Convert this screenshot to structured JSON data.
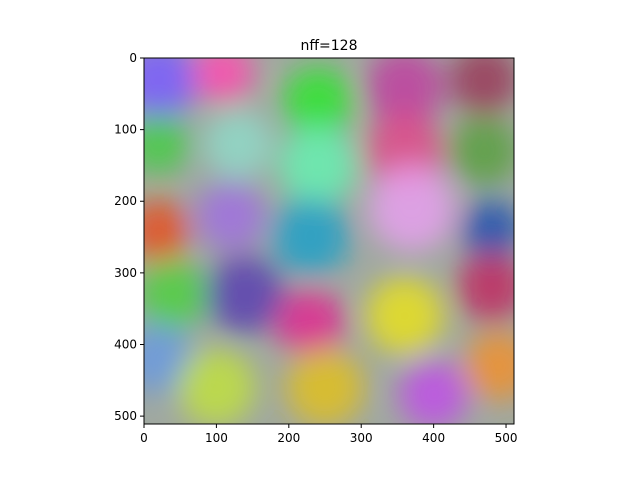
{
  "chart_data": {
    "type": "heatmap",
    "title": "nff=128",
    "xlabel": "",
    "ylabel": "",
    "xlim": [
      0,
      511
    ],
    "ylim": [
      511,
      0
    ],
    "xticks": [
      0,
      100,
      200,
      300,
      400,
      500
    ],
    "yticks": [
      0,
      100,
      200,
      300,
      400,
      500
    ],
    "image_kind": "rgb-noise",
    "color_blobs": [
      {
        "x": 20,
        "y": 30,
        "r": 90,
        "color": "#7a5cff"
      },
      {
        "x": 110,
        "y": 20,
        "r": 70,
        "color": "#ff4db0"
      },
      {
        "x": 240,
        "y": 60,
        "r": 80,
        "color": "#2ee62e"
      },
      {
        "x": 360,
        "y": 40,
        "r": 90,
        "color": "#c040a0"
      },
      {
        "x": 470,
        "y": 30,
        "r": 80,
        "color": "#9a3b5a"
      },
      {
        "x": 20,
        "y": 120,
        "r": 70,
        "color": "#44cc44"
      },
      {
        "x": 130,
        "y": 120,
        "r": 80,
        "color": "#8fd9c8"
      },
      {
        "x": 240,
        "y": 150,
        "r": 90,
        "color": "#66f0b0"
      },
      {
        "x": 360,
        "y": 130,
        "r": 90,
        "color": "#e04a8a"
      },
      {
        "x": 470,
        "y": 130,
        "r": 80,
        "color": "#5aa040"
      },
      {
        "x": 20,
        "y": 240,
        "r": 70,
        "color": "#e8501e"
      },
      {
        "x": 120,
        "y": 220,
        "r": 80,
        "color": "#a070e0"
      },
      {
        "x": 230,
        "y": 250,
        "r": 90,
        "color": "#1fa0c8"
      },
      {
        "x": 370,
        "y": 210,
        "r": 100,
        "color": "#e6a0ee"
      },
      {
        "x": 480,
        "y": 240,
        "r": 70,
        "color": "#2050b0"
      },
      {
        "x": 40,
        "y": 330,
        "r": 80,
        "color": "#50d040"
      },
      {
        "x": 140,
        "y": 330,
        "r": 90,
        "color": "#5a40b0"
      },
      {
        "x": 230,
        "y": 370,
        "r": 80,
        "color": "#e02890"
      },
      {
        "x": 360,
        "y": 360,
        "r": 90,
        "color": "#e8e020"
      },
      {
        "x": 480,
        "y": 320,
        "r": 80,
        "color": "#c02860"
      },
      {
        "x": 20,
        "y": 420,
        "r": 80,
        "color": "#6a9ae0"
      },
      {
        "x": 100,
        "y": 460,
        "r": 90,
        "color": "#c0e040"
      },
      {
        "x": 250,
        "y": 460,
        "r": 90,
        "color": "#e0c020"
      },
      {
        "x": 400,
        "y": 470,
        "r": 80,
        "color": "#c050e8"
      },
      {
        "x": 490,
        "y": 430,
        "r": 80,
        "color": "#f09030"
      }
    ]
  }
}
